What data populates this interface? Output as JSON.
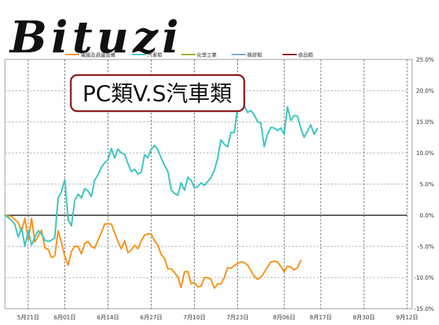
{
  "brand": {
    "logo_text": "Bituzi"
  },
  "chart_data": {
    "type": "line",
    "title": "PC類V.S汽車類",
    "x": [
      "2023-05-14",
      "2023-05-15",
      "2023-05-16",
      "2023-05-17",
      "2023-05-18",
      "2023-05-19",
      "2023-05-20",
      "2023-05-21",
      "2023-05-22",
      "2023-05-23",
      "2023-05-24",
      "2023-05-25",
      "2023-05-26",
      "2023-05-27",
      "2023-05-28",
      "2023-05-29",
      "2023-05-30",
      "2023-05-31",
      "2023-06-01",
      "2023-06-02",
      "2023-06-03",
      "2023-06-04",
      "2023-06-05",
      "2023-06-06",
      "2023-06-07",
      "2023-06-08",
      "2023-06-09",
      "2023-06-10",
      "2023-06-11",
      "2023-06-12",
      "2023-06-13",
      "2023-06-14",
      "2023-06-15",
      "2023-06-16",
      "2023-06-17",
      "2023-06-18",
      "2023-06-19",
      "2023-06-20",
      "2023-06-21",
      "2023-06-22",
      "2023-06-23",
      "2023-06-24",
      "2023-06-25",
      "2023-06-26",
      "2023-06-27",
      "2023-06-28",
      "2023-06-29",
      "2023-06-30",
      "2023-07-01",
      "2023-07-02",
      "2023-07-03",
      "2023-07-04",
      "2023-07-05",
      "2023-07-06",
      "2023-07-07",
      "2023-07-08",
      "2023-07-09",
      "2023-07-10",
      "2023-07-11",
      "2023-07-12",
      "2023-07-13",
      "2023-07-14",
      "2023-07-15",
      "2023-07-16",
      "2023-07-17",
      "2023-07-18",
      "2023-07-19",
      "2023-07-20",
      "2023-07-21",
      "2023-07-22",
      "2023-07-23",
      "2023-07-24",
      "2023-07-25",
      "2023-07-26",
      "2023-07-27",
      "2023-07-28",
      "2023-07-29",
      "2023-07-30",
      "2023-07-31",
      "2023-08-01",
      "2023-08-02",
      "2023-08-03",
      "2023-08-04",
      "2023-08-05",
      "2023-08-06",
      "2023-08-07",
      "2023-08-08",
      "2023-08-09",
      "2023-08-10",
      "2023-08-11",
      "2023-08-12",
      "2023-08-13",
      "2023-08-14",
      "2023-08-15",
      "2023-08-16",
      "2023-08-17",
      "2023-08-18",
      "2023-08-19",
      "2023-08-20",
      "2023-08-21",
      "2023-08-22",
      "2023-08-23",
      "2023-08-24",
      "2023-08-25",
      "2023-08-26",
      "2023-08-27",
      "2023-08-28",
      "2023-08-29",
      "2023-08-30",
      "2023-08-31",
      "2023-09-01",
      "2023-09-02",
      "2023-09-03",
      "2023-09-04",
      "2023-09-05",
      "2023-09-06",
      "2023-09-07",
      "2023-09-08",
      "2023-09-09",
      "2023-09-10",
      "2023-09-11",
      "2023-09-12"
    ],
    "x_ticks": [
      {
        "value": "2023-05-21",
        "label": "5月21日"
      },
      {
        "value": "2023-06-01",
        "label": "6月01日"
      },
      {
        "value": "2023-06-14",
        "label": "6月14日"
      },
      {
        "value": "2023-06-27",
        "label": "6月27日"
      },
      {
        "value": "2023-07-10",
        "label": "7月10日"
      },
      {
        "value": "2023-07-23",
        "label": "7月23日"
      },
      {
        "value": "2023-08-06",
        "label": "8月06日"
      },
      {
        "value": "2023-08-17",
        "label": "8月17日"
      },
      {
        "value": "2023-08-30",
        "label": "8月30日"
      },
      {
        "value": "2023-09-12",
        "label": "9月12日"
      }
    ],
    "yticks": [
      25,
      20,
      15,
      10,
      5,
      0,
      -5,
      -10,
      -15
    ],
    "ytick_labels": [
      "25.0%",
      "20.0%",
      "15.0%",
      "10.0%",
      "5.0%",
      "0.0%",
      "-5.0%",
      "-10.0%",
      "-15.0%"
    ],
    "ylim": [
      -15,
      25
    ],
    "grid": true,
    "legend_position": "top",
    "legend": [
      {
        "name": "電腦及週邊設備",
        "color": "#f7941d"
      },
      {
        "name": "汽車類",
        "color": "#3ec6c2"
      },
      {
        "name": "化學工業",
        "color": "#9aaa12"
      },
      {
        "name": "橡膠類",
        "color": "#6fa8dc"
      },
      {
        "name": "食品類",
        "color": "#8b1a1a"
      }
    ],
    "series": [
      {
        "name": "電腦及週邊設備",
        "color": "#f7941d",
        "points": [
          [
            "2023-05-14",
            0.0
          ],
          [
            "2023-05-16",
            -0.2
          ],
          [
            "2023-05-18",
            -1.2
          ],
          [
            "2023-05-19",
            -2.6
          ],
          [
            "2023-05-20",
            -0.5
          ],
          [
            "2023-05-21",
            -4.0
          ],
          [
            "2023-05-22",
            -0.5
          ],
          [
            "2023-05-23",
            -4.3
          ],
          [
            "2023-05-25",
            -2.4
          ],
          [
            "2023-05-26",
            -5.2
          ],
          [
            "2023-05-27",
            -5.5
          ],
          [
            "2023-05-28",
            -6.8
          ],
          [
            "2023-05-29",
            -6.5
          ],
          [
            "2023-05-30",
            -2.5
          ],
          [
            "2023-05-31",
            -4.4
          ],
          [
            "2023-06-01",
            -6.6
          ],
          [
            "2023-06-02",
            -8.0
          ],
          [
            "2023-06-03",
            -5.8
          ],
          [
            "2023-06-04",
            -5.0
          ],
          [
            "2023-06-05",
            -5.0
          ],
          [
            "2023-06-06",
            -6.2
          ],
          [
            "2023-06-07",
            -4.5
          ],
          [
            "2023-06-08",
            -4.2
          ],
          [
            "2023-06-09",
            -5.0
          ],
          [
            "2023-06-10",
            -5.3
          ],
          [
            "2023-06-11",
            -4.0
          ],
          [
            "2023-06-12",
            -2.8
          ],
          [
            "2023-06-13",
            -1.4
          ],
          [
            "2023-06-14",
            -1.4
          ],
          [
            "2023-06-15",
            -1.4
          ],
          [
            "2023-06-16",
            -2.8
          ],
          [
            "2023-06-17",
            -4.2
          ],
          [
            "2023-06-18",
            -5.4
          ],
          [
            "2023-06-19",
            -4.1
          ],
          [
            "2023-06-20",
            -6.0
          ],
          [
            "2023-06-21",
            -5.6
          ],
          [
            "2023-06-22",
            -4.8
          ],
          [
            "2023-06-23",
            -5.4
          ],
          [
            "2023-06-24",
            -4.1
          ],
          [
            "2023-06-25",
            -3.2
          ],
          [
            "2023-06-26",
            -3.0
          ],
          [
            "2023-06-27",
            -3.0
          ],
          [
            "2023-06-28",
            -4.1
          ],
          [
            "2023-06-29",
            -4.8
          ],
          [
            "2023-06-30",
            -6.3
          ],
          [
            "2023-07-01",
            -6.9
          ],
          [
            "2023-07-02",
            -8.6
          ],
          [
            "2023-07-03",
            -8.6
          ],
          [
            "2023-07-04",
            -9.2
          ],
          [
            "2023-07-05",
            -9.9
          ],
          [
            "2023-07-06",
            -11.6
          ],
          [
            "2023-07-07",
            -9.1
          ],
          [
            "2023-07-08",
            -9.0
          ],
          [
            "2023-07-09",
            -11.0
          ],
          [
            "2023-07-10",
            -10.8
          ],
          [
            "2023-07-11",
            -11.5
          ],
          [
            "2023-07-12",
            -11.4
          ],
          [
            "2023-07-13",
            -10.0
          ],
          [
            "2023-07-14",
            -10.0
          ],
          [
            "2023-07-15",
            -10.3
          ],
          [
            "2023-07-16",
            -11.7
          ],
          [
            "2023-07-17",
            -11.0
          ],
          [
            "2023-07-18",
            -11.0
          ],
          [
            "2023-07-19",
            -10.0
          ],
          [
            "2023-07-20",
            -8.4
          ],
          [
            "2023-07-21",
            -8.5
          ],
          [
            "2023-07-22",
            -8.1
          ],
          [
            "2023-07-23",
            -7.7
          ],
          [
            "2023-07-24",
            -7.5
          ],
          [
            "2023-07-25",
            -7.6
          ],
          [
            "2023-07-26",
            -8.0
          ],
          [
            "2023-07-27",
            -8.9
          ],
          [
            "2023-07-28",
            -9.8
          ],
          [
            "2023-07-29",
            -10.3
          ],
          [
            "2023-07-30",
            -9.9
          ],
          [
            "2023-07-31",
            -9.2
          ],
          [
            "2023-08-01",
            -8.3
          ],
          [
            "2023-08-02",
            -7.5
          ],
          [
            "2023-08-03",
            -7.4
          ],
          [
            "2023-08-04",
            -7.5
          ],
          [
            "2023-08-05",
            -8.2
          ],
          [
            "2023-08-06",
            -9.1
          ],
          [
            "2023-08-07",
            -8.2
          ],
          [
            "2023-08-08",
            -8.3
          ],
          [
            "2023-08-09",
            -8.8
          ],
          [
            "2023-08-10",
            -8.4
          ],
          [
            "2023-08-11",
            -7.3
          ]
        ]
      },
      {
        "name": "汽車類",
        "color": "#3ec6c2",
        "points": [
          [
            "2023-05-14",
            0.0
          ],
          [
            "2023-05-16",
            -0.8
          ],
          [
            "2023-05-17",
            -1.5
          ],
          [
            "2023-05-18",
            -3.5
          ],
          [
            "2023-05-19",
            -2.0
          ],
          [
            "2023-05-20",
            -5.0
          ],
          [
            "2023-05-21",
            -2.5
          ],
          [
            "2023-05-22",
            -4.8
          ],
          [
            "2023-05-23",
            -3.5
          ],
          [
            "2023-05-24",
            -2.5
          ],
          [
            "2023-05-25",
            -3.0
          ],
          [
            "2023-05-26",
            -4.0
          ],
          [
            "2023-05-27",
            -4.2
          ],
          [
            "2023-05-28",
            -4.0
          ],
          [
            "2023-05-29",
            -3.6
          ],
          [
            "2023-05-30",
            2.8
          ],
          [
            "2023-05-31",
            3.8
          ],
          [
            "2023-06-01",
            5.7
          ],
          [
            "2023-06-02",
            -0.7
          ],
          [
            "2023-06-03",
            -1.7
          ],
          [
            "2023-06-04",
            2.4
          ],
          [
            "2023-06-05",
            3.4
          ],
          [
            "2023-06-06",
            2.8
          ],
          [
            "2023-06-07",
            4.3
          ],
          [
            "2023-06-08",
            3.9
          ],
          [
            "2023-06-09",
            3.0
          ],
          [
            "2023-06-10",
            5.6
          ],
          [
            "2023-06-11",
            6.5
          ],
          [
            "2023-06-12",
            7.7
          ],
          [
            "2023-06-13",
            8.4
          ],
          [
            "2023-06-14",
            8.9
          ],
          [
            "2023-06-15",
            10.7
          ],
          [
            "2023-06-16",
            9.2
          ],
          [
            "2023-06-17",
            10.6
          ],
          [
            "2023-06-18",
            10.0
          ],
          [
            "2023-06-19",
            9.8
          ],
          [
            "2023-06-20",
            8.3
          ],
          [
            "2023-06-21",
            7.0
          ],
          [
            "2023-06-22",
            7.4
          ],
          [
            "2023-06-23",
            6.6
          ],
          [
            "2023-06-24",
            6.9
          ],
          [
            "2023-06-25",
            9.7
          ],
          [
            "2023-06-26",
            9.2
          ],
          [
            "2023-06-27",
            10.6
          ],
          [
            "2023-06-28",
            11.2
          ],
          [
            "2023-06-29",
            10.5
          ],
          [
            "2023-06-30",
            9.2
          ],
          [
            "2023-07-01",
            8.0
          ],
          [
            "2023-07-02",
            7.1
          ],
          [
            "2023-07-03",
            4.1
          ],
          [
            "2023-07-04",
            3.5
          ],
          [
            "2023-07-05",
            3.2
          ],
          [
            "2023-07-06",
            5.2
          ],
          [
            "2023-07-07",
            4.0
          ],
          [
            "2023-07-08",
            6.1
          ],
          [
            "2023-07-09",
            5.6
          ],
          [
            "2023-07-10",
            4.4
          ],
          [
            "2023-07-11",
            4.6
          ],
          [
            "2023-07-12",
            5.2
          ],
          [
            "2023-07-13",
            4.8
          ],
          [
            "2023-07-14",
            5.4
          ],
          [
            "2023-07-15",
            6.1
          ],
          [
            "2023-07-16",
            7.2
          ],
          [
            "2023-07-17",
            9.1
          ],
          [
            "2023-07-18",
            12.1
          ],
          [
            "2023-07-19",
            11.4
          ],
          [
            "2023-07-20",
            11.0
          ],
          [
            "2023-07-21",
            13.3
          ],
          [
            "2023-07-22",
            13.3
          ],
          [
            "2023-07-23",
            17.5
          ],
          [
            "2023-07-24",
            18.4
          ],
          [
            "2023-07-25",
            17.6
          ],
          [
            "2023-07-26",
            16.5
          ],
          [
            "2023-07-27",
            16.8
          ],
          [
            "2023-07-28",
            16.1
          ],
          [
            "2023-07-29",
            15.0
          ],
          [
            "2023-07-30",
            14.8
          ],
          [
            "2023-07-31",
            11.0
          ],
          [
            "2023-08-01",
            13.0
          ],
          [
            "2023-08-02",
            14.1
          ],
          [
            "2023-08-03",
            14.0
          ],
          [
            "2023-08-04",
            13.6
          ],
          [
            "2023-08-05",
            14.0
          ],
          [
            "2023-08-06",
            13.0
          ],
          [
            "2023-08-07",
            17.4
          ],
          [
            "2023-08-08",
            15.2
          ],
          [
            "2023-08-09",
            16.0
          ],
          [
            "2023-08-10",
            15.9
          ],
          [
            "2023-08-11",
            14.0
          ],
          [
            "2023-08-12",
            12.5
          ],
          [
            "2023-08-13",
            13.5
          ],
          [
            "2023-08-14",
            14.5
          ],
          [
            "2023-08-15",
            13.0
          ],
          [
            "2023-08-16",
            13.9
          ]
        ]
      }
    ]
  }
}
